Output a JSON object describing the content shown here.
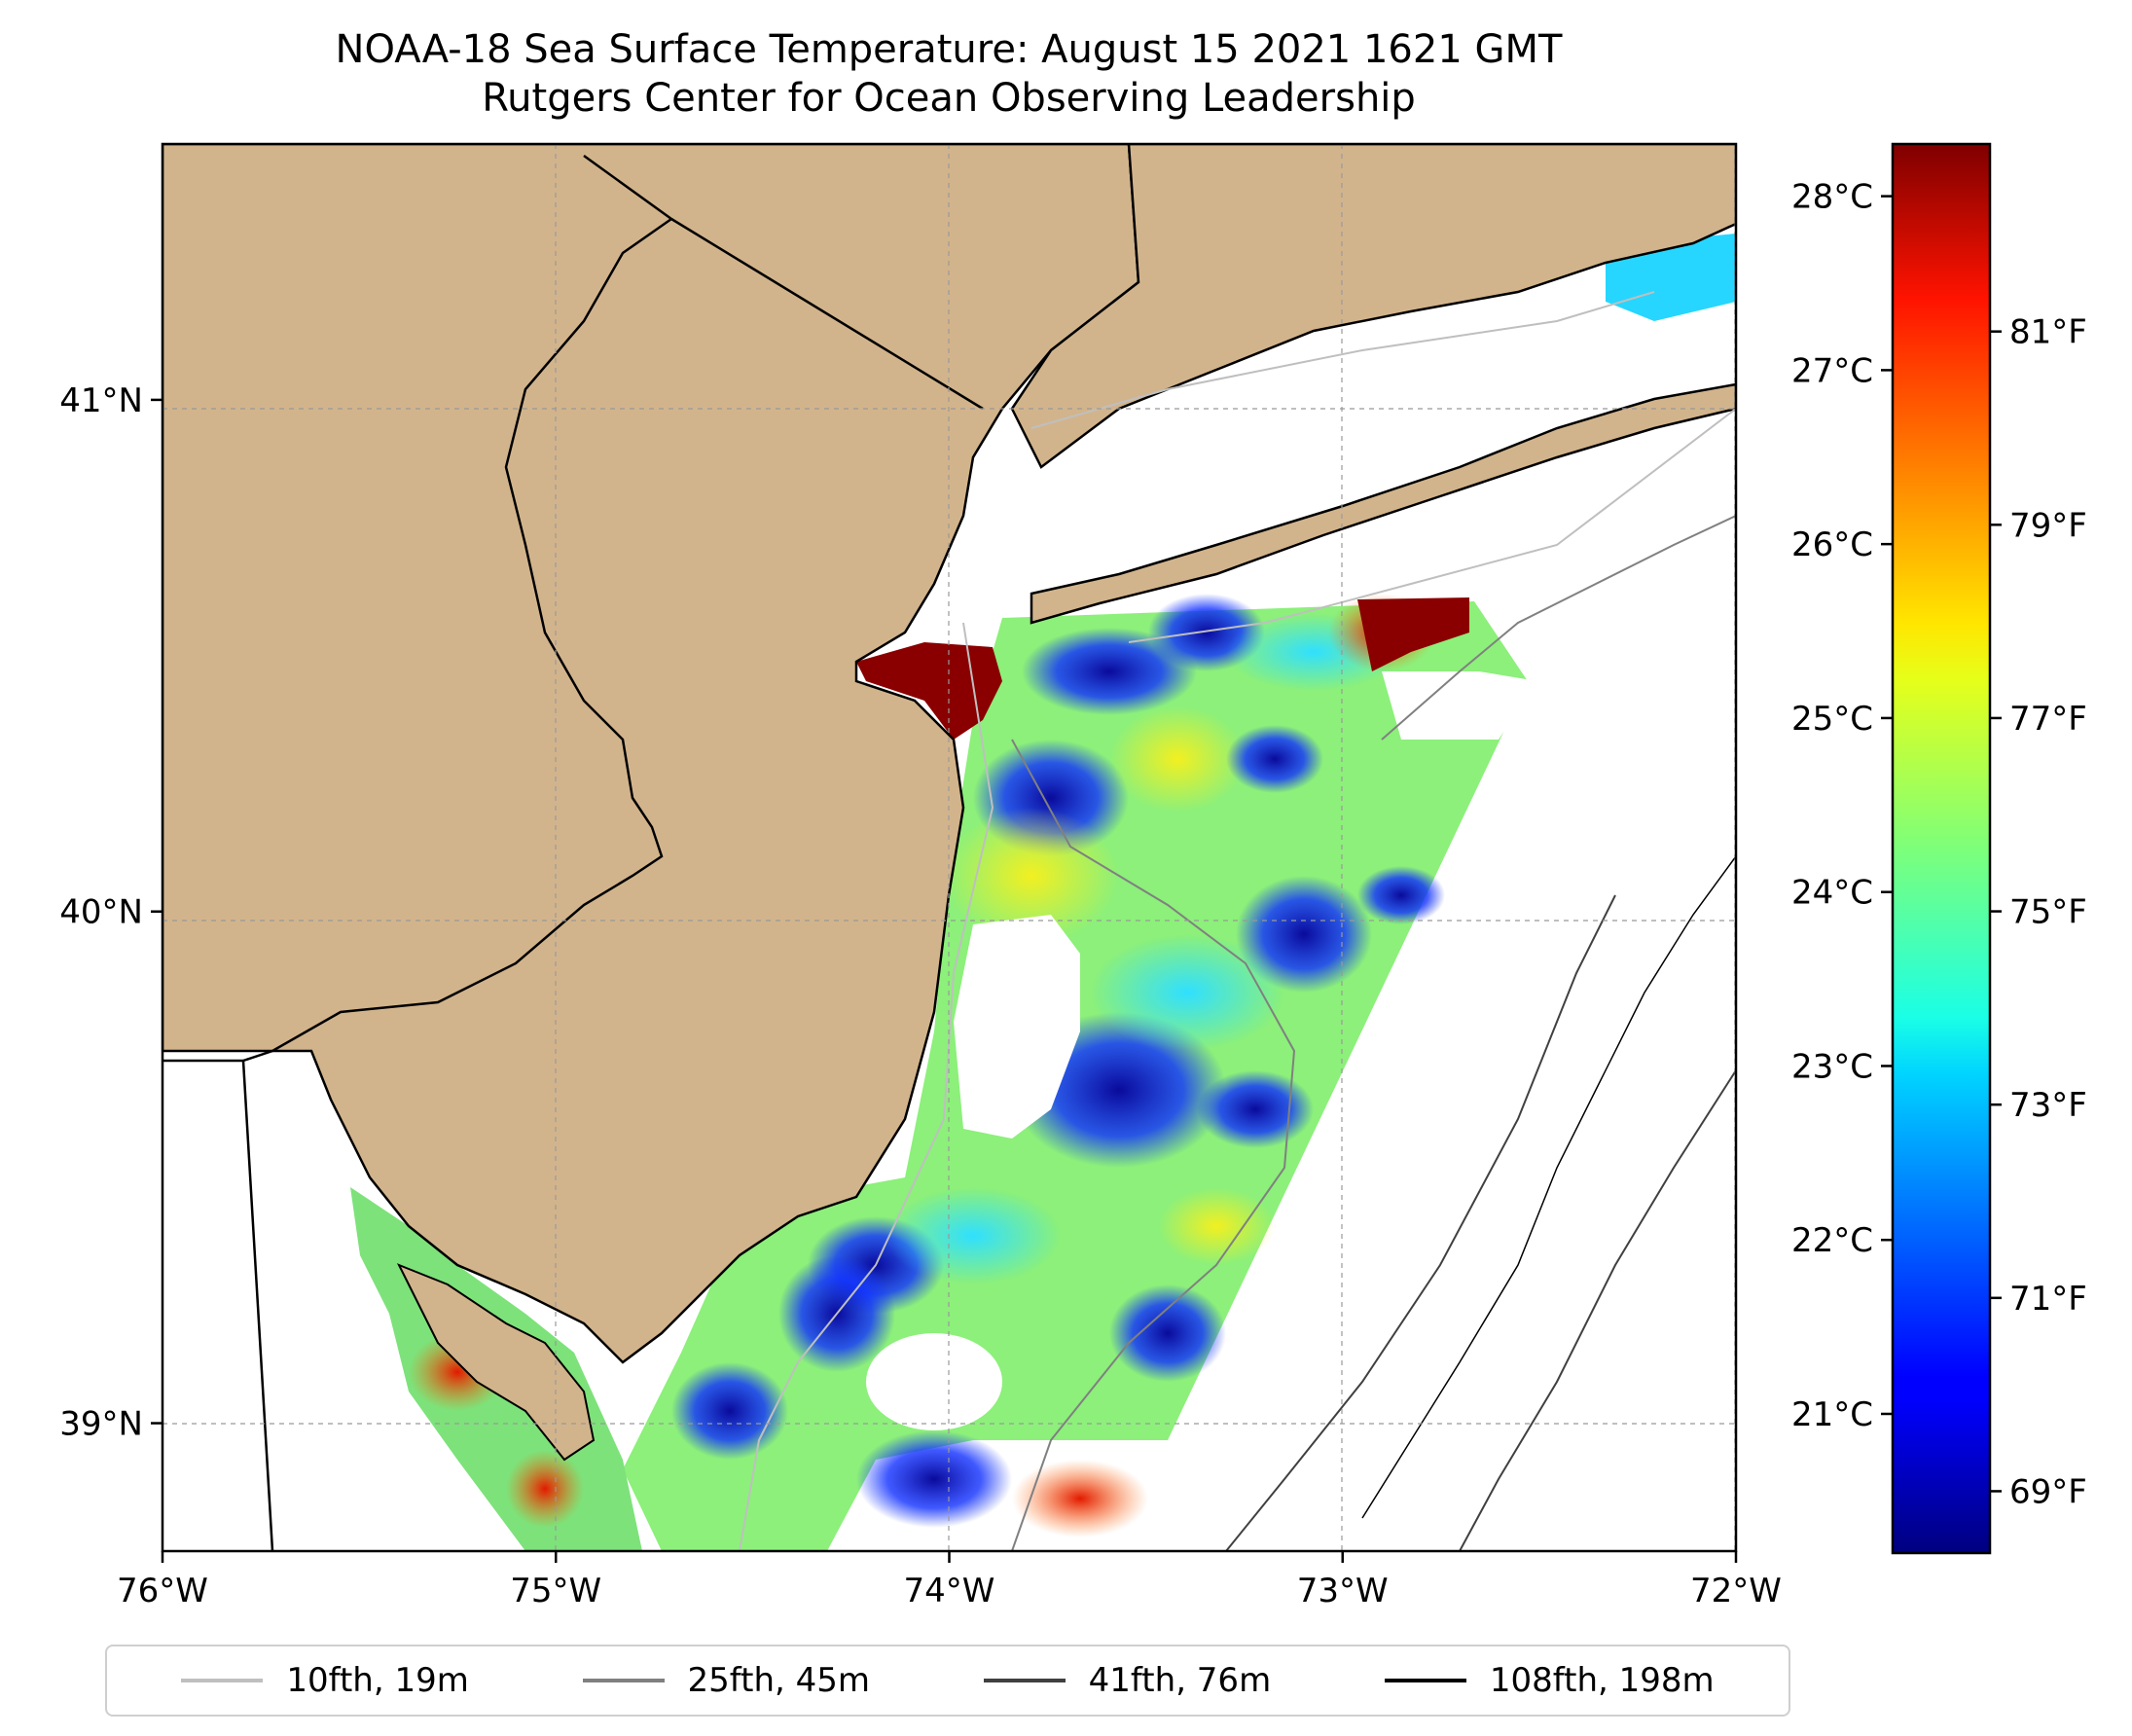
{
  "title": {
    "line1": "NOAA-18 Sea Surface Temperature: August 15 2021 1621 GMT",
    "line2": "Rutgers Center for Ocean Observing Leadership"
  },
  "map": {
    "extent": {
      "lon": [
        -76,
        -72
      ],
      "lat": [
        38.75,
        41.5
      ]
    },
    "land_color": "#d2b48c",
    "no_data_color": "#ffffff",
    "gridlines": true,
    "lon_ticks": [
      {
        "value": -76,
        "label": "76°W"
      },
      {
        "value": -75,
        "label": "75°W"
      },
      {
        "value": -74,
        "label": "74°W"
      },
      {
        "value": -73,
        "label": "73°W"
      },
      {
        "value": -72,
        "label": "72°W"
      }
    ],
    "lat_ticks": [
      {
        "value": 39,
        "label": "39°N"
      },
      {
        "value": 40,
        "label": "40°N"
      },
      {
        "value": 41,
        "label": "41°N"
      }
    ]
  },
  "colorbar": {
    "colormap": "jet",
    "range_c": [
      20.2,
      28.3
    ],
    "celsius_ticks": [
      {
        "value": 21,
        "label": "21°C"
      },
      {
        "value": 22,
        "label": "22°C"
      },
      {
        "value": 23,
        "label": "23°C"
      },
      {
        "value": 24,
        "label": "24°C"
      },
      {
        "value": 25,
        "label": "25°C"
      },
      {
        "value": 26,
        "label": "26°C"
      },
      {
        "value": 27,
        "label": "27°C"
      },
      {
        "value": 28,
        "label": "28°C"
      }
    ],
    "fahrenheit_ticks": [
      {
        "value": 69,
        "label": "69°F"
      },
      {
        "value": 71,
        "label": "71°F"
      },
      {
        "value": 73,
        "label": "73°F"
      },
      {
        "value": 75,
        "label": "75°F"
      },
      {
        "value": 77,
        "label": "77°F"
      },
      {
        "value": 79,
        "label": "79°F"
      },
      {
        "value": 81,
        "label": "81°F"
      }
    ]
  },
  "legend": [
    {
      "label": "10fth, 19m",
      "color": "#bfbfbf"
    },
    {
      "label": "25fth, 45m",
      "color": "#808080"
    },
    {
      "label": "41fth, 76m",
      "color": "#404040"
    },
    {
      "label": "108fth, 198m",
      "color": "#000000"
    }
  ]
}
